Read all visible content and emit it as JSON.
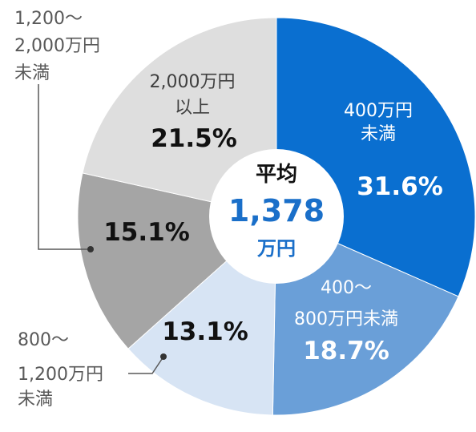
{
  "chart_data": {
    "type": "pie",
    "categories": [
      "400万円未満",
      "400〜800万円未満",
      "800〜1,200万円未満",
      "1,200〜2,000万円未満",
      "2,000万円以上"
    ],
    "values": [
      31.6,
      18.7,
      13.1,
      15.1,
      21.5
    ],
    "value_labels": [
      "31.6%",
      "18.7%",
      "13.1%",
      "15.1%",
      "21.5%"
    ],
    "colors": [
      "#0a6fd0",
      "#6a9fd8",
      "#d7e4f4",
      "#a5a5a5",
      "#dedede"
    ],
    "center": {
      "line1": "平均",
      "line2": "1,378",
      "line3": "万円"
    },
    "inside_labels": {
      "s0": [
        "400万円",
        "未満"
      ],
      "s1": [
        "400〜",
        "800万円未満"
      ],
      "s4": [
        "2,000万円",
        "以上"
      ]
    },
    "outside_labels": {
      "s2": [
        "800〜",
        "1,200万円",
        "未満"
      ],
      "s3": [
        "1,200〜",
        "2,000万円",
        "未満"
      ]
    }
  }
}
